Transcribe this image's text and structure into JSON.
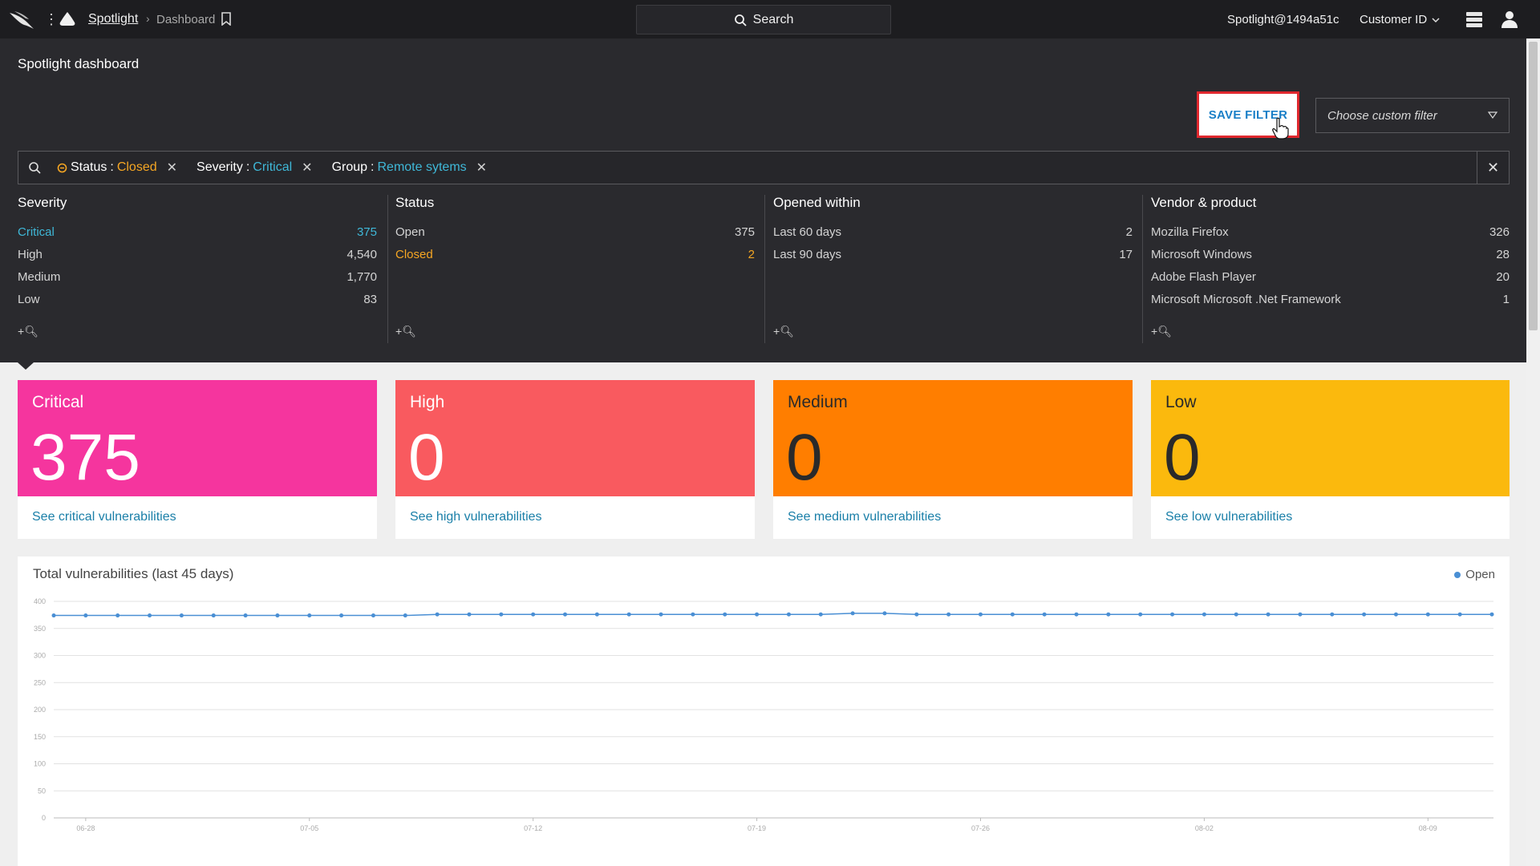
{
  "topbar": {
    "app_name": "Spotlight",
    "page_name": "Dashboard",
    "search_label": "Search",
    "account": "Spotlight@1494a51c",
    "customer_label": "Customer ID"
  },
  "page": {
    "title": "Spotlight dashboard"
  },
  "filter_actions": {
    "save_label": "SAVE FILTER",
    "custom_filter_placeholder": "Choose custom filter"
  },
  "active_filters": [
    {
      "key": "Status",
      "value": "Closed"
    },
    {
      "key": "Severity",
      "value": "Critical"
    },
    {
      "key": "Group",
      "value": "Remote sytems"
    }
  ],
  "facets": {
    "severity": {
      "title": "Severity",
      "rows": [
        {
          "label": "Critical",
          "count": "375"
        },
        {
          "label": "High",
          "count": "4,540"
        },
        {
          "label": "Medium",
          "count": "1,770"
        },
        {
          "label": "Low",
          "count": "83"
        }
      ]
    },
    "status": {
      "title": "Status",
      "rows": [
        {
          "label": "Open",
          "count": "375"
        },
        {
          "label": "Closed",
          "count": "2"
        }
      ]
    },
    "opened": {
      "title": "Opened within",
      "rows": [
        {
          "label": "Last 60 days",
          "count": "2"
        },
        {
          "label": "Last 90 days",
          "count": "17"
        }
      ]
    },
    "vendor": {
      "title": "Vendor & product",
      "rows": [
        {
          "label": "Mozilla Firefox",
          "count": "326"
        },
        {
          "label": "Microsoft Windows",
          "count": "28"
        },
        {
          "label": "Adobe Flash Player",
          "count": "20"
        },
        {
          "label": "Microsoft Microsoft .Net Framework",
          "count": "1"
        }
      ]
    },
    "add_label": "+"
  },
  "cards": [
    {
      "label": "Critical",
      "value": "375",
      "link": "See critical vulnerabilities",
      "color": "#f5359e"
    },
    {
      "label": "High",
      "value": "0",
      "link": "See high vulnerabilities",
      "color": "#f95a5f"
    },
    {
      "label": "Medium",
      "value": "0",
      "link": "See medium vulnerabilities",
      "color": "#ff7e00"
    },
    {
      "label": "Low",
      "value": "0",
      "link": "See low vulnerabilities",
      "color": "#fbb90d"
    }
  ],
  "chart": {
    "title": "Total vulnerabilities (last 45 days)",
    "legend": "Open"
  },
  "chart_data": {
    "type": "line",
    "title": "Total vulnerabilities (last 45 days)",
    "xlabel": "",
    "ylabel": "",
    "ylim": [
      0,
      400
    ],
    "yticks": [
      0,
      50,
      100,
      150,
      200,
      250,
      300,
      350,
      400
    ],
    "xtick_labels": [
      "06-28",
      "07-05",
      "07-12",
      "07-19",
      "07-26",
      "08-02",
      "08-09"
    ],
    "series": [
      {
        "name": "Open",
        "color": "#4a8fd4",
        "values": [
          374,
          374,
          374,
          374,
          374,
          374,
          374,
          374,
          374,
          374,
          374,
          374,
          376,
          376,
          376,
          376,
          376,
          376,
          376,
          376,
          376,
          376,
          376,
          376,
          376,
          378,
          378,
          376,
          376,
          376,
          376,
          376,
          376,
          376,
          376,
          376,
          376,
          376,
          376,
          376,
          376,
          376,
          376,
          376,
          376,
          376
        ]
      }
    ]
  }
}
